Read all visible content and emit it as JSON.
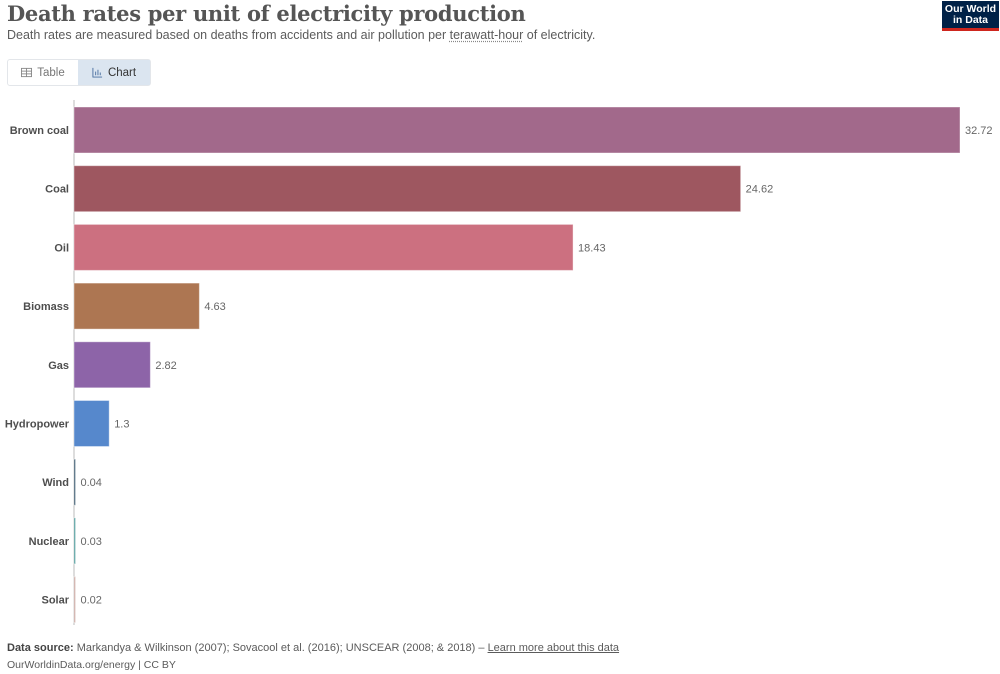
{
  "header": {
    "title": "Death rates per unit of electricity production",
    "subtitle_pre": "Death rates are measured based on deaths from accidents and air pollution per ",
    "subtitle_link": "terawatt-hour",
    "subtitle_post": " of electricity.",
    "logo_line1": "Our World",
    "logo_line2": "in Data"
  },
  "tabs": [
    {
      "label": "Table",
      "icon": "table-icon",
      "active": false
    },
    {
      "label": "Chart",
      "icon": "chart-icon",
      "active": true
    }
  ],
  "chart_data": {
    "type": "bar",
    "orientation": "horizontal",
    "title": "Death rates per unit of electricity production",
    "subtitle": "Death rates are measured based on deaths from accidents and air pollution per terawatt-hour of electricity.",
    "xlabel": "",
    "ylabel": "",
    "xlim": [
      0,
      32.72
    ],
    "grid": false,
    "categories": [
      "Brown coal",
      "Coal",
      "Oil",
      "Biomass",
      "Gas",
      "Hydropower",
      "Wind",
      "Nuclear",
      "Solar"
    ],
    "values": [
      32.72,
      24.62,
      18.43,
      4.63,
      2.82,
      1.3,
      0.04,
      0.03,
      0.02
    ],
    "value_labels": [
      "32.72",
      "24.62",
      "18.43",
      "4.63",
      "2.82",
      "1.3",
      "0.04",
      "0.03",
      "0.02"
    ],
    "colors": [
      "#a2698b",
      "#9e5760",
      "#cc7080",
      "#ad7652",
      "#8d64a8",
      "#5688cc",
      "#3c5a6f",
      "#4c9a9a",
      "#c9a7a0"
    ]
  },
  "footer": {
    "source_label": "Data source:",
    "source_text": " Markandya & Wilkinson (2007); Sovacool et al. (2016); UNSCEAR (2008; & 2018) – ",
    "learn_more": "Learn more about this data",
    "url_license": "OurWorldinData.org/energy | CC BY"
  }
}
